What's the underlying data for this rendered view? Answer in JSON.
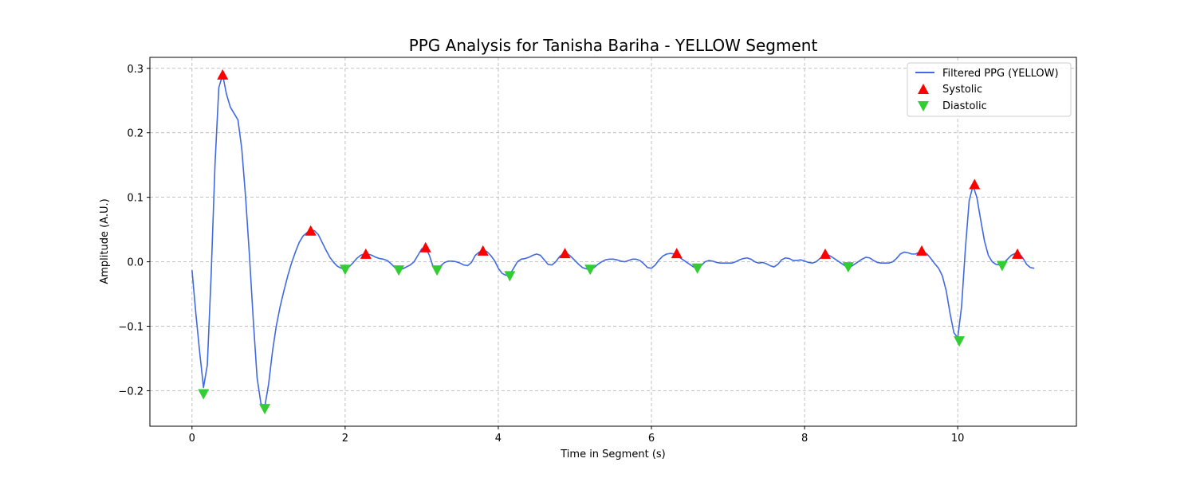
{
  "chart_data": {
    "type": "line",
    "title": "PPG Analysis for Tanisha Bariha - YELLOW Segment",
    "xlabel": "Time in Segment (s)",
    "ylabel": "Amplitude (A.U.)",
    "xlim": [
      -0.55,
      11.55
    ],
    "ylim": [
      -0.255,
      0.317
    ],
    "x_ticks": [
      0,
      2,
      4,
      6,
      8,
      10
    ],
    "x_tick_labels": [
      "0",
      "2",
      "4",
      "6",
      "8",
      "10"
    ],
    "y_ticks": [
      -0.2,
      -0.1,
      0.0,
      0.1,
      0.2,
      0.3
    ],
    "y_tick_labels": [
      "−0.2",
      "−0.1",
      "0.0",
      "0.1",
      "0.2",
      "0.3"
    ],
    "grid": true,
    "legend_position": "top-right",
    "series": [
      {
        "name": "Filtered PPG (YELLOW)",
        "kind": "line",
        "color": "#4169e1",
        "points": [
          [
            0.0,
            -0.013
          ],
          [
            0.05,
            -0.08
          ],
          [
            0.1,
            -0.14
          ],
          [
            0.15,
            -0.195
          ],
          [
            0.2,
            -0.16
          ],
          [
            0.25,
            -0.02
          ],
          [
            0.3,
            0.15
          ],
          [
            0.35,
            0.27
          ],
          [
            0.4,
            0.29
          ],
          [
            0.45,
            0.26
          ],
          [
            0.5,
            0.24
          ],
          [
            0.55,
            0.23
          ],
          [
            0.6,
            0.22
          ],
          [
            0.65,
            0.175
          ],
          [
            0.7,
            0.1
          ],
          [
            0.75,
            0.01
          ],
          [
            0.8,
            -0.09
          ],
          [
            0.85,
            -0.18
          ],
          [
            0.9,
            -0.22
          ],
          [
            0.95,
            -0.225
          ],
          [
            1.0,
            -0.19
          ],
          [
            1.05,
            -0.14
          ],
          [
            1.1,
            -0.1
          ],
          [
            1.15,
            -0.07
          ],
          [
            1.2,
            -0.045
          ],
          [
            1.25,
            -0.022
          ],
          [
            1.3,
            -0.002
          ],
          [
            1.35,
            0.015
          ],
          [
            1.4,
            0.03
          ],
          [
            1.45,
            0.04
          ],
          [
            1.5,
            0.045
          ],
          [
            1.55,
            0.05
          ],
          [
            1.6,
            0.048
          ],
          [
            1.65,
            0.042
          ],
          [
            1.7,
            0.03
          ],
          [
            1.75,
            0.018
          ],
          [
            1.8,
            0.007
          ],
          [
            1.85,
            -0.001
          ],
          [
            1.9,
            -0.007
          ],
          [
            1.95,
            -0.01
          ],
          [
            2.0,
            -0.011
          ],
          [
            2.05,
            -0.008
          ],
          [
            2.1,
            -0.002
          ],
          [
            2.15,
            0.005
          ],
          [
            2.2,
            0.01
          ],
          [
            2.25,
            0.012
          ],
          [
            2.3,
            0.012
          ],
          [
            2.35,
            0.01
          ],
          [
            2.4,
            0.007
          ],
          [
            2.45,
            0.005
          ],
          [
            2.5,
            0.004
          ],
          [
            2.55,
            0.002
          ],
          [
            2.6,
            -0.003
          ],
          [
            2.65,
            -0.009
          ],
          [
            2.7,
            -0.012
          ],
          [
            2.75,
            -0.011
          ],
          [
            2.8,
            -0.008
          ],
          [
            2.85,
            -0.005
          ],
          [
            2.9,
            0.0
          ],
          [
            2.95,
            0.01
          ],
          [
            3.0,
            0.02
          ],
          [
            3.05,
            0.022
          ],
          [
            3.1,
            0.01
          ],
          [
            3.15,
            -0.008
          ],
          [
            3.2,
            -0.012
          ],
          [
            3.25,
            -0.006
          ],
          [
            3.3,
            -0.001
          ],
          [
            3.35,
            0.001
          ],
          [
            3.4,
            0.001
          ],
          [
            3.45,
            0.0
          ],
          [
            3.5,
            -0.002
          ],
          [
            3.55,
            -0.005
          ],
          [
            3.6,
            -0.006
          ],
          [
            3.65,
            -0.001
          ],
          [
            3.7,
            0.01
          ],
          [
            3.75,
            0.015
          ],
          [
            3.8,
            0.017
          ],
          [
            3.85,
            0.016
          ],
          [
            3.9,
            0.01
          ],
          [
            3.95,
            0.002
          ],
          [
            4.0,
            -0.01
          ],
          [
            4.05,
            -0.018
          ],
          [
            4.1,
            -0.021
          ],
          [
            4.15,
            -0.02
          ],
          [
            4.2,
            -0.01
          ],
          [
            4.25,
            0.0
          ],
          [
            4.3,
            0.004
          ],
          [
            4.35,
            0.005
          ],
          [
            4.4,
            0.007
          ],
          [
            4.45,
            0.01
          ],
          [
            4.5,
            0.012
          ],
          [
            4.55,
            0.01
          ],
          [
            4.6,
            0.003
          ],
          [
            4.65,
            -0.004
          ],
          [
            4.7,
            -0.005
          ],
          [
            4.75,
            0.0
          ],
          [
            4.8,
            0.008
          ],
          [
            4.85,
            0.013
          ],
          [
            4.9,
            0.013
          ],
          [
            4.95,
            0.008
          ],
          [
            5.0,
            0.002
          ],
          [
            5.05,
            -0.004
          ],
          [
            5.1,
            -0.009
          ],
          [
            5.15,
            -0.011
          ],
          [
            5.2,
            -0.012
          ],
          [
            5.25,
            -0.009
          ],
          [
            5.3,
            -0.004
          ],
          [
            5.35,
            0.0
          ],
          [
            5.4,
            0.003
          ],
          [
            5.45,
            0.004
          ],
          [
            5.5,
            0.004
          ],
          [
            5.55,
            0.003
          ],
          [
            5.6,
            0.001
          ],
          [
            5.65,
            0.0
          ],
          [
            5.7,
            0.002
          ],
          [
            5.75,
            0.004
          ],
          [
            5.8,
            0.004
          ],
          [
            5.85,
            0.002
          ],
          [
            5.9,
            -0.003
          ],
          [
            5.95,
            -0.009
          ],
          [
            6.0,
            -0.01
          ],
          [
            6.05,
            -0.005
          ],
          [
            6.1,
            0.003
          ],
          [
            6.15,
            0.009
          ],
          [
            6.2,
            0.012
          ],
          [
            6.25,
            0.013
          ],
          [
            6.3,
            0.012
          ],
          [
            6.35,
            0.008
          ],
          [
            6.4,
            0.004
          ],
          [
            6.45,
            0.0
          ],
          [
            6.5,
            -0.004
          ],
          [
            6.55,
            -0.008
          ],
          [
            6.6,
            -0.01
          ],
          [
            6.65,
            -0.006
          ],
          [
            6.7,
            0.0
          ],
          [
            6.75,
            0.002
          ],
          [
            6.8,
            0.001
          ],
          [
            6.85,
            -0.001
          ],
          [
            6.9,
            -0.002
          ],
          [
            6.95,
            -0.002
          ],
          [
            7.0,
            -0.002
          ],
          [
            7.05,
            -0.002
          ],
          [
            7.1,
            0.0
          ],
          [
            7.15,
            0.003
          ],
          [
            7.2,
            0.005
          ],
          [
            7.25,
            0.006
          ],
          [
            7.3,
            0.004
          ],
          [
            7.35,
            0.0
          ],
          [
            7.4,
            -0.002
          ],
          [
            7.45,
            -0.001
          ],
          [
            7.5,
            -0.003
          ],
          [
            7.55,
            -0.006
          ],
          [
            7.6,
            -0.008
          ],
          [
            7.65,
            -0.004
          ],
          [
            7.7,
            0.003
          ],
          [
            7.75,
            0.006
          ],
          [
            7.8,
            0.005
          ],
          [
            7.85,
            0.002
          ],
          [
            7.9,
            0.002
          ],
          [
            7.95,
            0.003
          ],
          [
            8.0,
            0.001
          ],
          [
            8.05,
            -0.001
          ],
          [
            8.1,
            -0.002
          ],
          [
            8.15,
            0.0
          ],
          [
            8.2,
            0.005
          ],
          [
            8.25,
            0.01
          ],
          [
            8.3,
            0.011
          ],
          [
            8.35,
            0.008
          ],
          [
            8.4,
            0.004
          ],
          [
            8.45,
            0.0
          ],
          [
            8.5,
            -0.004
          ],
          [
            8.55,
            -0.008
          ],
          [
            8.6,
            -0.008
          ],
          [
            8.65,
            -0.004
          ],
          [
            8.7,
            0.0
          ],
          [
            8.75,
            0.004
          ],
          [
            8.8,
            0.007
          ],
          [
            8.85,
            0.006
          ],
          [
            8.9,
            0.002
          ],
          [
            8.95,
            -0.001
          ],
          [
            9.0,
            -0.002
          ],
          [
            9.05,
            -0.002
          ],
          [
            9.1,
            -0.002
          ],
          [
            9.15,
            0.0
          ],
          [
            9.2,
            0.005
          ],
          [
            9.25,
            0.012
          ],
          [
            9.3,
            0.015
          ],
          [
            9.35,
            0.014
          ],
          [
            9.4,
            0.012
          ],
          [
            9.45,
            0.012
          ],
          [
            9.5,
            0.015
          ],
          [
            9.55,
            0.016
          ],
          [
            9.6,
            0.012
          ],
          [
            9.65,
            0.005
          ],
          [
            9.7,
            -0.003
          ],
          [
            9.75,
            -0.01
          ],
          [
            9.8,
            -0.022
          ],
          [
            9.85,
            -0.045
          ],
          [
            9.9,
            -0.08
          ],
          [
            9.95,
            -0.11
          ],
          [
            10.0,
            -0.118
          ],
          [
            10.05,
            -0.07
          ],
          [
            10.1,
            0.02
          ],
          [
            10.15,
            0.095
          ],
          [
            10.2,
            0.118
          ],
          [
            10.25,
            0.1
          ],
          [
            10.3,
            0.065
          ],
          [
            10.35,
            0.032
          ],
          [
            10.4,
            0.01
          ],
          [
            10.45,
            0.0
          ],
          [
            10.5,
            -0.004
          ],
          [
            10.55,
            -0.005
          ],
          [
            10.6,
            -0.002
          ],
          [
            10.65,
            0.004
          ],
          [
            10.7,
            0.01
          ],
          [
            10.75,
            0.013
          ],
          [
            10.8,
            0.013
          ],
          [
            10.85,
            0.006
          ],
          [
            10.9,
            -0.004
          ],
          [
            10.95,
            -0.009
          ],
          [
            11.0,
            -0.01
          ]
        ]
      },
      {
        "name": "Systolic",
        "kind": "markers",
        "marker": "triangle-up",
        "color": "#ff0000",
        "points": [
          [
            0.4,
            0.29
          ],
          [
            1.55,
            0.048
          ],
          [
            2.27,
            0.012
          ],
          [
            3.05,
            0.022
          ],
          [
            3.8,
            0.017
          ],
          [
            4.87,
            0.013
          ],
          [
            6.33,
            0.013
          ],
          [
            8.27,
            0.012
          ],
          [
            9.53,
            0.017
          ],
          [
            10.22,
            0.12
          ],
          [
            10.78,
            0.012
          ]
        ]
      },
      {
        "name": "Diastolic",
        "kind": "markers",
        "marker": "triangle-down",
        "color": "#32cd32",
        "points": [
          [
            0.15,
            -0.205
          ],
          [
            0.95,
            -0.228
          ],
          [
            2.0,
            -0.012
          ],
          [
            2.7,
            -0.013
          ],
          [
            3.2,
            -0.013
          ],
          [
            4.15,
            -0.022
          ],
          [
            5.2,
            -0.012
          ],
          [
            6.6,
            -0.01
          ],
          [
            8.57,
            -0.008
          ],
          [
            10.02,
            -0.123
          ],
          [
            10.58,
            -0.006
          ]
        ]
      }
    ]
  }
}
